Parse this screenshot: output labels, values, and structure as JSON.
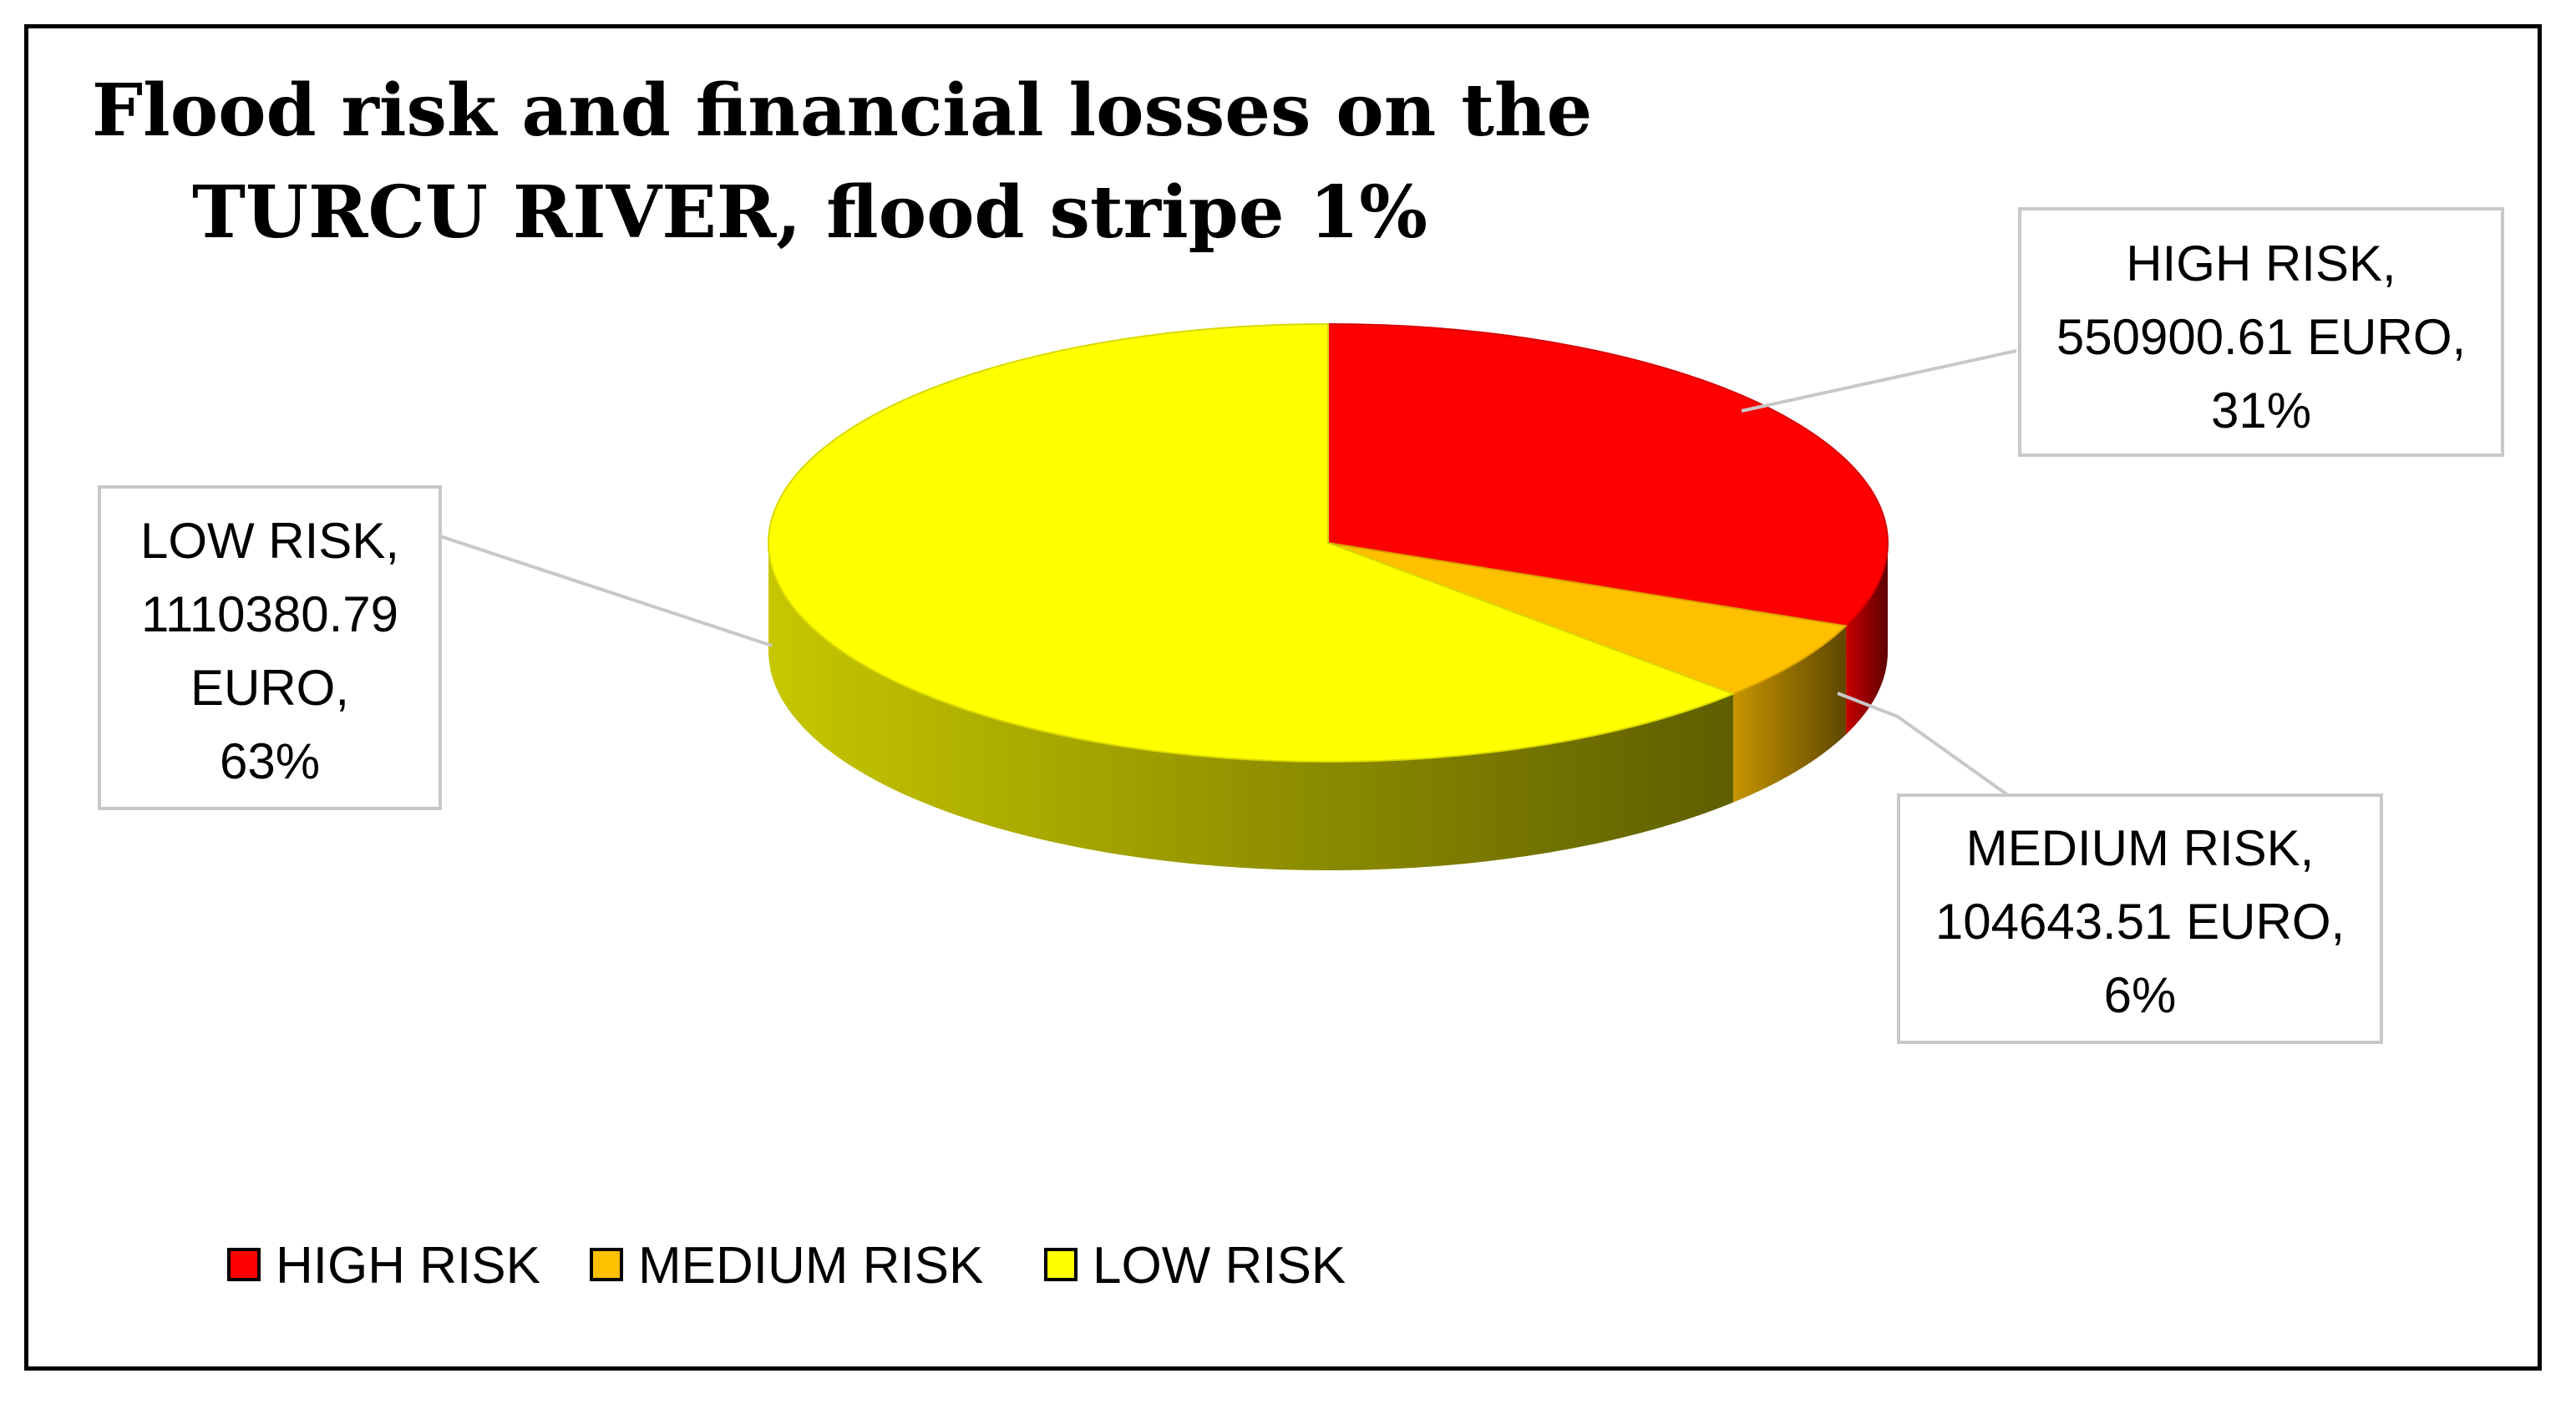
{
  "chart_data": {
    "type": "pie",
    "style": "3d",
    "title_lines": [
      "Flood risk and financial losses on the",
      "TURCU RIVER, flood stripe 1%"
    ],
    "slices": [
      {
        "name": "HIGH RISK",
        "value": 550900.61,
        "percent": 31,
        "color": "#ff0000",
        "label_lines": [
          "HIGH RISK,",
          "550900.61 EURO,",
          "31%"
        ]
      },
      {
        "name": "MEDIUM RISK",
        "value": 104643.51,
        "percent": 6,
        "color": "#ffc000",
        "label_lines": [
          "MEDIUM RISK,",
          "104643.51 EURO,",
          "6%"
        ]
      },
      {
        "name": "LOW RISK",
        "value": 1110380.79,
        "percent": 63,
        "color": "#ffff00",
        "label_lines": [
          "LOW RISK,",
          "1110380.79",
          "EURO,",
          "63%"
        ]
      }
    ],
    "legend": {
      "position": "bottom-left",
      "entries": [
        "HIGH RISK",
        "MEDIUM RISK",
        "LOW RISK"
      ]
    }
  }
}
